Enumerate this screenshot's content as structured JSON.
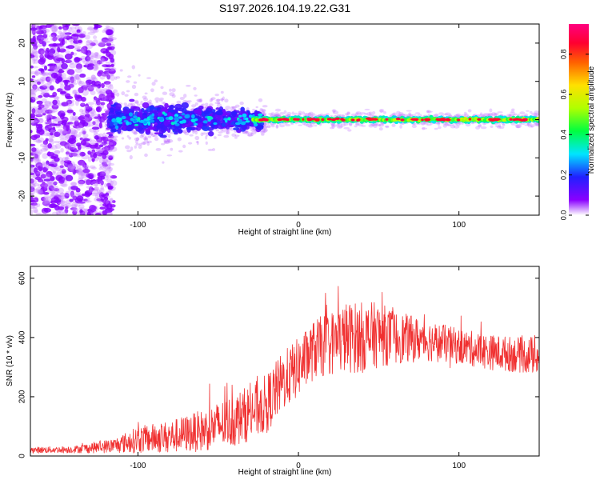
{
  "title": "S197.2026.104.19.22.G31",
  "chart_data": [
    {
      "type": "heatmap",
      "name": "spectrogram",
      "xlabel": "Height of straight line (km)",
      "ylabel": "Frequency (Hz)",
      "xlim": [
        -167,
        150
      ],
      "ylim": [
        -25,
        25
      ],
      "xticks": [
        -100,
        0,
        100
      ],
      "yticks": [
        -20,
        -10,
        0,
        10,
        20
      ],
      "xtick_labels": [
        "-100",
        "0",
        "100"
      ],
      "ytick_labels": [
        "-20",
        "-10",
        "0",
        "10",
        "20"
      ],
      "colorbar": {
        "label": "Normalized spectral amplitude",
        "range": [
          0,
          0.95
        ],
        "ticks": [
          0,
          0.2,
          0.4,
          0.6,
          0.8
        ],
        "tick_labels": [
          "0.0",
          "0.2",
          "0.4",
          "0.6",
          "0.8"
        ],
        "colors": [
          "#ffffff",
          "#8a00ff",
          "#2020ff",
          "#00e5ff",
          "#00ff40",
          "#b0ff00",
          "#ffe000",
          "#ff6000",
          "#ff0030",
          "#ff0080"
        ]
      },
      "regions": [
        {
          "x_range": [
            -167,
            -115
          ],
          "freq_spread": 25,
          "amplitude": 0.08,
          "note": "diffuse purple noise"
        },
        {
          "x_range": [
            -115,
            -25
          ],
          "freq_spread": 6,
          "amplitude": 0.2,
          "note": "blue/cyan blobs"
        },
        {
          "x_range": [
            -25,
            150
          ],
          "freq_spread": 1.5,
          "amplitude": 0.9,
          "note": "narrow red/green line near 0 Hz"
        }
      ]
    },
    {
      "type": "line",
      "name": "snr",
      "xlabel": "Height of straight line (km)",
      "ylabel": "SNR (10 * v/v)",
      "xlim": [
        -167,
        150
      ],
      "ylim": [
        0,
        640
      ],
      "xticks": [
        -100,
        0,
        100
      ],
      "yticks": [
        0,
        200,
        400,
        600
      ],
      "xtick_labels": [
        "-100",
        "0",
        "100"
      ],
      "ytick_labels": [
        "0",
        "200",
        "400",
        "600"
      ],
      "color": "#f03030",
      "envelope": {
        "x": [
          -167,
          -140,
          -115,
          -100,
          -80,
          -60,
          -40,
          -20,
          -10,
          0,
          10,
          20,
          30,
          40,
          50,
          60,
          80,
          100,
          120,
          140,
          150
        ],
        "mean": [
          20,
          22,
          35,
          55,
          65,
          85,
          120,
          175,
          250,
          300,
          360,
          380,
          400,
          400,
          410,
          400,
          390,
          370,
          350,
          340,
          340
        ],
        "spread": [
          10,
          12,
          25,
          45,
          55,
          70,
          90,
          100,
          100,
          100,
          100,
          110,
          120,
          120,
          110,
          90,
          70,
          60,
          60,
          60,
          70
        ]
      }
    }
  ]
}
